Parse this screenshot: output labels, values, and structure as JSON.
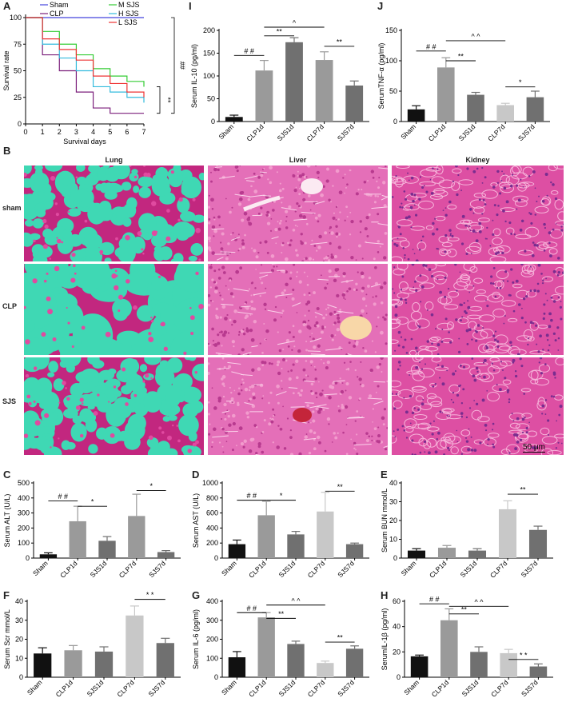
{
  "panel_labels": {
    "A": "A",
    "B": "B",
    "C": "C",
    "D": "D",
    "E": "E",
    "F": "F",
    "G": "G",
    "H": "H",
    "I": "I",
    "J": "J"
  },
  "colors": {
    "sham": "#4444dd",
    "clp": "#7b1f7b",
    "msjs": "#33cc33",
    "hsjs": "#33bbdd",
    "lsjs": "#ee3333",
    "black": "#111111",
    "dgray": "#707070",
    "mgray": "#9a9a9a",
    "lgray": "#c8c8c8"
  },
  "histology": {
    "columns": [
      "Lung",
      "Liver",
      "Kidney"
    ],
    "rows": [
      "sham",
      "CLP",
      "SJS"
    ],
    "scale_bar": "50 μm"
  },
  "chart_data": [
    {
      "id": "A",
      "type": "line",
      "xlabel": "Survival  days",
      "ylabel": "Survival  rate",
      "xlim": [
        0,
        7
      ],
      "ylim": [
        0,
        100
      ],
      "xticks": [
        "0",
        "1",
        "2",
        "3",
        "4",
        "5",
        "6",
        "7"
      ],
      "yticks": [
        "0",
        "25",
        "50",
        "75",
        "100"
      ],
      "legend": [
        "Sham",
        "CLP",
        "M SJS",
        "H SJS",
        "L SJS"
      ],
      "series": [
        {
          "name": "Sham",
          "color": "#4444dd",
          "x": [
            0,
            7
          ],
          "y": [
            100,
            100
          ]
        },
        {
          "name": "CLP",
          "color": "#7b1f7b",
          "x": [
            0,
            1,
            2,
            3,
            4,
            5,
            6,
            7
          ],
          "y": [
            100,
            65,
            50,
            30,
            15,
            10,
            10,
            10
          ]
        },
        {
          "name": "M SJS",
          "color": "#33cc33",
          "x": [
            0,
            1,
            2,
            3,
            4,
            5,
            6,
            7
          ],
          "y": [
            100,
            87,
            75,
            65,
            52,
            45,
            40,
            35
          ]
        },
        {
          "name": "H SJS",
          "color": "#33bbdd",
          "x": [
            0,
            1,
            2,
            3,
            4,
            5,
            6,
            7
          ],
          "y": [
            100,
            75,
            62,
            50,
            35,
            30,
            25,
            20
          ]
        },
        {
          "name": "L SJS",
          "color": "#ee3333",
          "x": [
            0,
            1,
            2,
            3,
            4,
            5,
            6,
            7
          ],
          "y": [
            100,
            80,
            70,
            60,
            45,
            38,
            30,
            25
          ]
        }
      ],
      "annotations": [
        "##",
        "**"
      ]
    },
    {
      "id": "I",
      "type": "bar",
      "ylabel": "Serum IL-10 (pg/ml)",
      "ylim": [
        0,
        200
      ],
      "yticks": [
        "0",
        "50",
        "100",
        "150",
        "200"
      ],
      "categories": [
        "Sham",
        "CLP1d",
        "SJS1d",
        "CLP7d",
        "SJS7d"
      ],
      "values": [
        10,
        112,
        174,
        135,
        79
      ],
      "errors": [
        4,
        22,
        10,
        18,
        10
      ],
      "annotations": [
        "# #",
        "**",
        "^",
        "**"
      ]
    },
    {
      "id": "J",
      "type": "bar",
      "ylabel": "SerumTNF-α (pg/ml)",
      "ylim": [
        0,
        150
      ],
      "yticks": [
        "0",
        "50",
        "100",
        "150"
      ],
      "categories": [
        "Sham",
        "CLP1d",
        "SJS1d",
        "CLP7d",
        "SJS7d"
      ],
      "values": [
        20,
        89,
        44,
        27,
        40
      ],
      "errors": [
        6,
        16,
        4,
        3,
        10
      ],
      "annotations": [
        "# #",
        "**",
        "^ ^",
        "*"
      ]
    },
    {
      "id": "C",
      "type": "bar",
      "ylabel": "Serum ALT (U/L)",
      "ylim": [
        0,
        500
      ],
      "yticks": [
        "0",
        "100",
        "200",
        "300",
        "400",
        "500"
      ],
      "categories": [
        "Sham",
        "CLP1d",
        "SJS1d",
        "CLP7d",
        "SJS7d"
      ],
      "values": [
        25,
        245,
        115,
        280,
        40
      ],
      "errors": [
        10,
        100,
        28,
        145,
        10
      ],
      "annotations": [
        "# #",
        "*",
        "*"
      ]
    },
    {
      "id": "D",
      "type": "bar",
      "ylabel": "Serum AST (U/L)",
      "ylim": [
        0,
        1000
      ],
      "yticks": [
        "0",
        "200",
        "400",
        "600",
        "800",
        "1000"
      ],
      "categories": [
        "Sham",
        "CLP1d",
        "SJS1d",
        "CLP7d",
        "SJS7d"
      ],
      "values": [
        185,
        570,
        315,
        620,
        185
      ],
      "errors": [
        55,
        185,
        40,
        255,
        15
      ],
      "annotations": [
        "# #",
        "*",
        "**"
      ]
    },
    {
      "id": "E",
      "type": "bar",
      "ylabel": "Serum BUN mmol/L",
      "ylim": [
        0,
        40
      ],
      "yticks": [
        "0",
        "10",
        "20",
        "30",
        "40"
      ],
      "categories": [
        "Sham",
        "CLP1d",
        "SJS1d",
        "CLP7d",
        "SJS7d"
      ],
      "values": [
        4,
        5.5,
        4,
        26,
        15
      ],
      "errors": [
        1,
        1.2,
        1,
        4.5,
        2
      ],
      "annotations": [
        "**"
      ]
    },
    {
      "id": "F",
      "type": "bar",
      "ylabel": "Serum Scr mmol/L",
      "ylim": [
        0,
        40
      ],
      "yticks": [
        "0",
        "10",
        "20",
        "30",
        "40"
      ],
      "categories": [
        "Sham",
        "CLP1d",
        "SJS1d",
        "CLP7d",
        "SJS7d"
      ],
      "values": [
        12.5,
        14.2,
        13.5,
        32.5,
        18
      ],
      "errors": [
        3,
        2.5,
        2.5,
        5,
        2.5
      ],
      "annotations": [
        "* *"
      ]
    },
    {
      "id": "G",
      "type": "bar",
      "ylabel": "Serum IL-6 (pg/ml)",
      "ylim": [
        0,
        400
      ],
      "yticks": [
        "0",
        "100",
        "200",
        "300",
        "400"
      ],
      "categories": [
        "Sham",
        "CLP1d",
        "SJS1d",
        "CLP7d",
        "SJS7d"
      ],
      "values": [
        105,
        315,
        175,
        75,
        150
      ],
      "errors": [
        30,
        25,
        15,
        10,
        15
      ],
      "annotations": [
        "# #",
        "**",
        "^ ^",
        "**"
      ]
    },
    {
      "id": "H",
      "type": "bar",
      "ylabel": "SerumIL-1β (pg/ml)",
      "ylim": [
        0,
        60
      ],
      "yticks": [
        "0",
        "20",
        "40",
        "60"
      ],
      "categories": [
        "Sham",
        "CLP1d",
        "SJS1d",
        "CLP7d",
        "SJS7d"
      ],
      "values": [
        16.5,
        45,
        20,
        19,
        8.5
      ],
      "errors": [
        1,
        9,
        4,
        3,
        2
      ],
      "annotations": [
        "# #",
        "**",
        "^ ^",
        "* *"
      ]
    }
  ]
}
